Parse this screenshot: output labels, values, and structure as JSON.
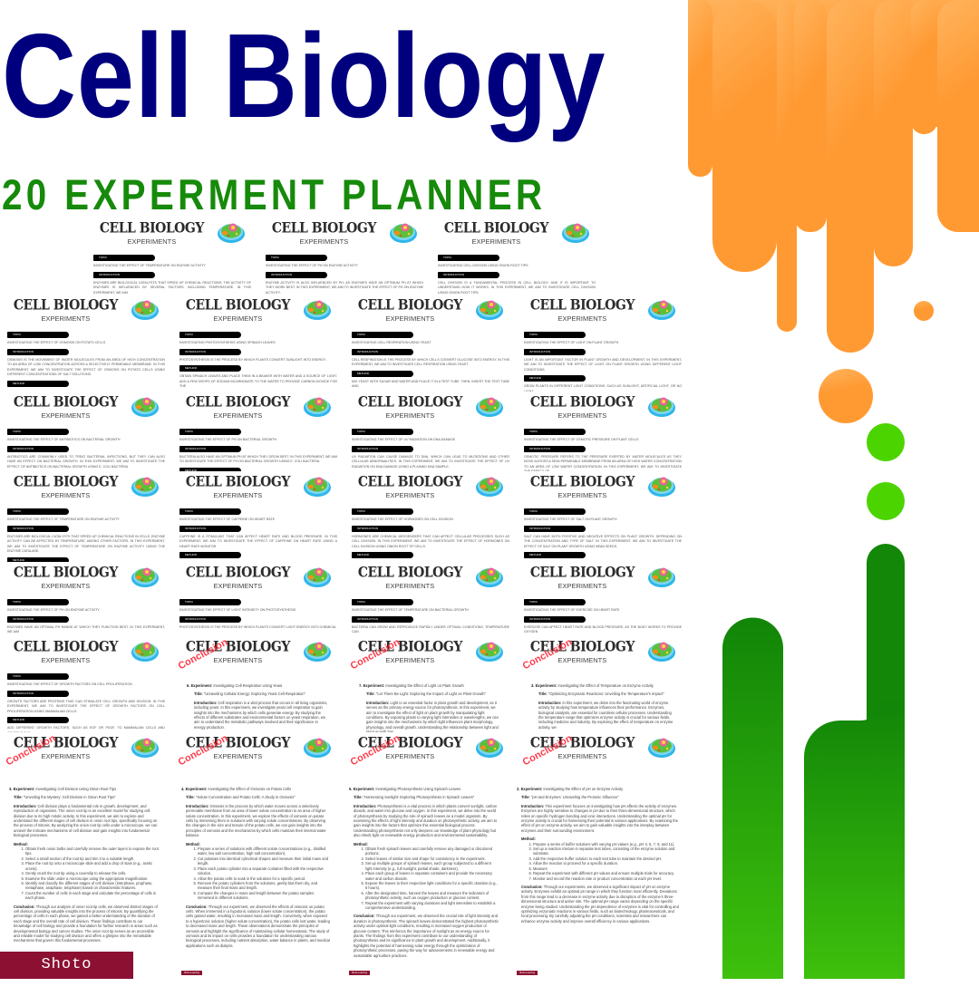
{
  "header": {
    "title": "Cell Biology",
    "subtitle": "20 EXPERMENT PLANNER"
  },
  "brand": "Shoto Learning",
  "colors": {
    "title": "#00007f",
    "subtitle": "#168a0a",
    "orange": "#ff9a33",
    "green_light": "#4cd400",
    "green_dark": "#148a08",
    "brand": "#8b1032",
    "stamp": "#ff3b4a"
  },
  "sheet_header": {
    "title": "CELL BIOLOGY",
    "subtitle": "EXPERIMENTS",
    "icon": "animal-cell-icon",
    "stamp": "Conclusion"
  },
  "labels": {
    "topic": "TOPIC",
    "introduction": "INTRODUCTION",
    "method": "METHOD"
  },
  "page_labels": {
    "experiment": "Experiment:",
    "title": "Title:",
    "introduction": "Introduction:",
    "method": "Method:",
    "conclusion": "Conclusion:"
  },
  "sheets": [
    {
      "topic": "INVESTIGATING THE EFFECT OF TEMPERATURE ON ENZYME ACTIVITY",
      "introduction": "ENZYMES ARE BIOLOGICAL CATALYSTS THAT SPEED UP CHEMICAL REACTIONS. THE ACTIVITY OF ENZYMES IS INFLUENCED BY SEVERAL FACTORS, INCLUDING TEMPERATURE. IN THIS EXPERIMENT, WE AIM"
    },
    {
      "topic": "INVESTIGATING THE EFFECT OF PH ON ENZYME ACTIVITY",
      "introduction": "ENZYME ACTIVITY IS ALSO INFLUENCED BY PH, AS ENZYMES HAVE AN OPTIMUM PH AT WHICH THEY WORK BEST. IN THIS EXPERIMENT, WE AIM TO INVESTIGATE THE EFFECT OF PH ON ENZYME ACTIVITY."
    },
    {
      "topic": "INVESTIGATING CELL DIVISION USING ONION ROOT TIPS",
      "introduction": "CELL DIVISION IS A FUNDAMENTAL PROCESS IN CELL BIOLOGY, AND IT IS IMPORTANT TO UNDERSTAND HOW IT WORKS. IN THIS EXPERIMENT, WE AIM TO INVESTIGATE CELL DIVISION USING ONION ROOT TIPS."
    },
    {
      "topic": "INVESTIGATING THE EFFECT OF OSMOSIS ON POTATO CELLS",
      "introduction": "OSMOSIS IS THE MOVEMENT OF WATER MOLECULES FROM AN AREA OF HIGH CONCENTRATION TO AN AREA OF LOW CONCENTRATION ACROSS A SELECTIVELY PERMEABLE MEMBRANE. IN THIS EXPERIMENT, WE AIM TO INVESTIGATE THE EFFECT OF OSMOSIS ON POTATO CELLS USING DIFFERENT CONCENTRATIONS OF SALT SOLUTIONS.",
      "method": ""
    },
    {
      "topic": "INVESTIGATING PHOTOSYNTHESIS USING SPINACH LEAVES",
      "introduction": "PHOTOSYNTHESIS IS THE PROCESS BY WHICH PLANTS CONVERT SUNLIGHT INTO ENERGY.",
      "method": "OBTAIN SPINACH LEAVES AND PLACE THEM IN A BEAKER WITH WATER AND A SOURCE OF LIGHT. ADD A FEW DROPS OF SODIUM BICARBONATE TO THE WATER TO PROVIDE CARBON DIOXIDE FOR THE"
    },
    {
      "topic": "INVESTIGATING CELL RESPIRATION USING YEAST",
      "introduction": "CELL RESPIRATION IS THE PROCESS BY WHICH CELLS CONVERT GLUCOSE INTO ENERGY. IN THIS EXPERIMENT, WE AIM TO INVESTIGATE CELL RESPIRATION USING YEAST.",
      "method": "MIX YEAST WITH SUGAR AND WATER AND PLACE IT IN A TEST TUBE. THEN, INSERT THE TEST TUBE AND"
    },
    {
      "topic": "INVESTIGATING THE EFFECT OF LIGHT ON PLANT GROWTH",
      "introduction": "LIGHT IS AN IMPORTANT FACTOR IN PLANT GROWTH AND DEVELOPMENT. IN THIS EXPERIMENT, WE AIM TO INVESTIGATE THE EFFECT OF LIGHT ON PLANT GROWTH USING DIFFERENT LIGHT CONDITIONS.",
      "method": "GROW PLANTS IN DIFFERENT LIGHT CONDITIONS, SUCH AS SUNLIGHT, ARTIFICIAL LIGHT, OR NO LIGHT."
    },
    {
      "topic": "INVESTIGATING THE EFFECT OF ANTIBIOTICS ON BACTERIAL GROWTH",
      "introduction": "ANTIBIOTICS ARE COMMONLY USED TO TREAT BACTERIAL INFECTIONS, BUT THEY CAN ALSO HAVE AN EFFECT ON BACTERIAL GROWTH. IN THIS EXPERIMENT, WE AIM TO INVESTIGATE THE EFFECT OF ANTIBIOTICS ON BACTERIAL GROWTH USING E. COLI BACTERIA."
    },
    {
      "topic": "INVESTIGATING THE EFFECT OF PH ON BACTERIAL GROWTH",
      "introduction": "BACTERIA ALSO HAVE AN OPTIMUM PH AT WHICH THEY GROW BEST. IN THIS EXPERIMENT, WE AIM TO INVESTIGATE THE EFFECT OF PH ON BACTERIAL GROWTH USING E. COLI BACTERIA.",
      "method": ""
    },
    {
      "topic": "INVESTIGATING THE EFFECT OF UV RADIATION ON DNA DAMAGE",
      "introduction": "UV RADIATION CAN CAUSE DAMAGE TO DNA, WHICH CAN LEAD TO MUTATIONS AND OTHER CELLULAR ABNORMALITIES. IN THIS EXPERIMENT, WE AIM TO INVESTIGATE THE EFFECT OF UV RADIATION ON DNA DAMAGE USING A PLASMID DNA SAMPLE."
    },
    {
      "topic": "INVESTIGATING THE EFFECT OF OSMOTIC PRESSURE ON PLANT CELLS",
      "introduction": "OSMOTIC PRESSURE REFERS TO THE PRESSURE EXERTED BY WATER MOLECULES AS THEY MOVE ACROSS A SEMI-PERMEABLE MEMBRANE FROM AN AREA OF HIGH WATER CONCENTRATION TO AN AREA OF LOW WATER CONCENTRATION. IN THIS EXPERIMENT, WE AIM TO INVESTIGATE THE EFFECT OF"
    },
    {
      "topic": "INVESTIGATING THE EFFECT OF TEMPERATURE ON ENZYME ACTIVITY",
      "introduction": "ENZYMES ARE BIOLOGICAL CATALYSTS THAT SPEED UP CHEMICAL REACTIONS IN CELLS. ENZYME ACTIVITY CAN BE AFFECTED BY TEMPERATURE, AMONG OTHER FACTORS. IN THIS EXPERIMENT, WE AIM TO INVESTIGATE THE EFFECT OF TEMPERATURE ON ENZYME ACTIVITY USING THE ENZYME CATALASE.",
      "method": ""
    },
    {
      "topic": "INVESTIGATING THE EFFECT OF CAFFEINE ON HEART RATE",
      "introduction": "CAFFEINE IS A STIMULANT THAT CAN AFFECT HEART RATE AND BLOOD PRESSURE. IN THIS EXPERIMENT, WE AIM TO INVESTIGATE THE EFFECT OF CAFFEINE ON HEART RATE USING A HEART RATE MONITOR.",
      "method": ""
    },
    {
      "topic": "INVESTIGATING THE EFFECT OF HORMONES ON CELL DIVISION",
      "introduction": "HORMONES ARE CHEMICAL MESSENGERS THAT CAN AFFECT CELLULAR PROCESSES SUCH AS CELL DIVISION. IN THIS EXPERIMENT, WE AIM TO INVESTIGATE THE EFFECT OF HORMONES ON CELL DIVISION USING ONION ROOT TIP CELLS.",
      "method": ""
    },
    {
      "topic": "INVESTIGATING THE EFFECT OF SALT ON PLANT GROWTH",
      "introduction": "SALT CAN HAVE BOTH POSITIVE AND NEGATIVE EFFECTS ON PLANT GROWTH, DEPENDING ON THE CONCENTRATION AND TYPE OF SALT. IN THIS EXPERIMENT, WE AIM TO INVESTIGATE THE EFFECT OF SALT ON PLANT GROWTH USING BEAN SEEDS.",
      "method": ""
    },
    {
      "topic": "INVESTIGATING THE EFFECT OF PH ON ENZYME ACTIVITY",
      "introduction": "ENZYMES HAVE AN OPTIMAL PH RANGE AT WHICH THEY FUNCTION BEST. IN THIS EXPERIMENT, WE AIM"
    },
    {
      "topic": "INVESTIGATING THE EFFECT OF LIGHT INTENSITY ON PHOTOSYNTHESIS",
      "introduction": "PHOTOSYNTHESIS IS THE PROCESS BY WHICH PLANTS CONVERT LIGHT ENERGY INTO CHEMICAL"
    },
    {
      "topic": "INVESTIGATING THE EFFECT OF TEMPERATURE ON BACTERIAL GROWTH",
      "introduction": "BACTERIA CAN GROW AND REPRODUCE RAPIDLY UNDER OPTIMAL CONDITIONS. TEMPERATURE CAN"
    },
    {
      "topic": "INVESTIGATING THE EFFECT OF EXERCISE ON HEART RATE",
      "introduction": "EXERCISE CAN AFFECT HEART RATE AND BLOOD PRESSURE, AS THE BODY WORKS TO PROVIDE OXYGEN"
    },
    {
      "topic": "INVESTIGATING THE EFFECT OF GROWTH FACTORS ON CELL PROLIFERATION",
      "introduction": "GROWTH FACTORS ARE PROTEINS THAT CAN STIMULATE CELL GROWTH AND DIVISION. IN THIS EXPERIMENT, WE AIM TO INVESTIGATE THE EFFECT OF GROWTH FACTORS ON CELL PROLIFERATION USING MAMMALIAN CELLS.",
      "method": "ADD DIFFERENT GROWTH FACTORS, SUCH AS EGF OR PDGF, TO MAMMALIAN CELLS AND OBSERVE THE"
    },
    {
      "conclusion": true,
      "number": "6.",
      "experiment": "Investigating Cell Respiration Using Yeast",
      "title": "\"Unraveling Cellular Energy: Exploring Yeast Cell Respiration\"",
      "introduction": "Cell respiration is a vital process that occurs in all living organisms, including yeast. In this experiment, we investigate yeast cell respiration to gain insights into the mechanisms by which cells generate energy. By studying the effects of different substrates and environmental factors on yeast respiration, we aim to understand the metabolic pathways involved and their significance in energy production."
    },
    {
      "conclusion": true,
      "number": "7.",
      "experiment": "Investigating the Effect of Light on Plant Growth",
      "title": "\"Let There Be Light: Exploring the Impact of Light on Plant Growth\"",
      "introduction": "Light is an essential factor in plant growth and development, as it serves as the primary energy source for photosynthesis. In this experiment, we aim to investigate the effect of light on plant growth by manipulating light conditions. By exposing plants to varying light intensities or wavelengths, we can gain insights into the mechanisms by which light influences plant morphology, physiology, and overall growth. Understanding the relationship between light and plant growth has"
    },
    {
      "conclusion": true,
      "number": "3.",
      "experiment": "Investigating the Effect of Temperature on Enzyme Activity",
      "title": "\"Optimizing Enzymatic Reactions: Unveiling the Temperature's Impact\"",
      "introduction": "In this experiment, we delve into the fascinating world of enzyme activity by studying how temperature influences their performance. Enzymes, biological catalysts, are essential for countless cellular processes. Understanding the temperature range that optimizes enzyme activity is crucial for various fields, including medicine and industry. By exploring the effect of temperature on enzyme activity, we"
    },
    {
      "conclusion": true
    },
    {
      "conclusion": true
    },
    {
      "conclusion": true
    },
    {
      "conclusion": true
    }
  ],
  "pages": [
    {
      "number": "3.",
      "experiment": "Investigating Cell Division Using Onion Root Tips",
      "title": "\"Unveiling the Mystery: Cell Division in Onion Root Tips\"",
      "introduction": "Cell division plays a fundamental role in growth, development, and reproduction of organisms. The onion root tip is an excellent model for studying cell division due to its high mitotic activity. In this experiment, we aim to explore and understand the different stages of cell division in onion root tips, specifically focusing on the process of mitosis. By analyzing the onion root tip cells under a microscope, we can unravel the intricate mechanisms of cell division and gain insights into fundamental biological processes.",
      "method": [
        "Obtain fresh onion bulbs and carefully remove the outer layers to expose the root tips.",
        "Select a small section of the root tip and trim it to a suitable length.",
        "Place the root tip onto a microscope slide and add a drop of stain (e.g., acetic orcein).",
        "Gently crush the root tip using a coverslip to release the cells.",
        "Examine the slide under a microscope using the appropriate magnification.",
        "Identify and classify the different stages of cell division (interphase, prophase, metaphase, anaphase, telophase) based on characteristic features.",
        "Count the number of cells in each stage and calculate the percentage of cells in each phase."
      ],
      "conclusion": "Through our analysis of onion root tip cells, we observed distinct stages of cell division, providing valuable insights into the process of mitosis. By quantifying the percentage of cells in each phase, we gained a better understanding of the duration of each stage and the overall rate of cell division. These findings contribute to our knowledge of cell biology and provide a foundation for further research in areas such as developmental biology and cancer studies. The onion root tip serves as an accessible and reliable model for studying cell division and offers a glimpse into the remarkable mechanisms that govern this fundamental processes."
    },
    {
      "number": "4.",
      "experiment": "Investigating the Effect of Osmosis on Potato Cells",
      "title": "\"Solute Concentration and Potato Cells: A Study in Osmosis\"",
      "introduction": "Osmosis is the process by which water moves across a selectively permeable membrane from an area of lower solute concentration to an area of higher solute concentration. In this experiment, we explore the effects of osmosis on potato cells by immersing them in solutions with varying solute concentrations. By observing the changes in the size and texture of the potato cells, we can gain insights into the principles of osmosis and the mechanisms by which cells maintain their internal water balance.",
      "method": [
        "Prepare a series of solutions with different solute concentrations (e.g., distilled water, low salt concentration, high salt concentration).",
        "Cut potatoes into identical cylindrical shapes and measure their initial mass and length.",
        "Place each potato cylinder into a separate container filled with the respective solution.",
        "Allow the potato cells to soak in the solutions for a specific period.",
        "Remove the potato cylinders from the solutions, gently blot them dry, and measure their final mass and length.",
        "Compare the changes in mass and length between the potato samples immersed in different solutions."
      ],
      "conclusion": "Through our experiment, we observed the effects of osmosis on potato cells. When immersed in a hypotonic solution (lower solute concentration), the potato cells gained water, resulting in increased mass and length. Conversely, when exposed to a hypertonic solution (higher solute concentration), the potato cells lost water, leading to decreased mass and length. These observations demonstrate the principles of osmosis and highlight the significance of maintaining cellular homeostasis. The study of osmosis and its impact on cells provides a foundation for understanding various biological processes, including nutrient absorption, water balance in plants, and medical applications such as dialysis."
    },
    {
      "number": "5.",
      "experiment": "Investigating Photosynthesis Using Spinach Leaves",
      "title": "\"Harnessing Sunlight: Exploring Photosynthesis in Spinach Leaves\"",
      "introduction": "Photosynthesis is a vital process in which plants convert sunlight, carbon dioxide, and water into glucose and oxygen. In this experiment, we delve into the world of photosynthesis by studying the role of spinach leaves as a model organism. By examining the effects of light intensity and duration on photosynthetic activity, we aim to gain insights into the factors that optimize this essential biological process. Understanding photosynthesis not only deepens our knowledge of plant physiology but also sheds light on renewable energy production and environmental sustainability.",
      "method": [
        "Obtain fresh spinach leaves and carefully remove any damaged or discolored portions.",
        "Select leaves of similar size and shape for consistency in the experiment.",
        "Set up multiple groups of spinach leaves, each group subjected to a different light intensity (e.g., full sunlight, partial shade, darkness).",
        "Place each group of leaves in separate containers and provide the necessary water and carbon dioxide.",
        "Expose the leaves to their respective light conditions for a specific duration (e.g., 6 hours).",
        "After the designated time, harvest the leaves and measure the indicators of photosynthetic activity, such as oxygen production or glucose content.",
        "Repeat the experiment with varying durations and light intensities to establish a comprehensive understanding."
      ],
      "conclusion": "Through our experiment, we observed the crucial role of light intensity and duration in photosynthesis. The spinach leaves demonstrated the highest photosynthetic activity under optimal light conditions, resulting in increased oxygen production or glucose content. This reinforces the importance of sunlight as an energy source for plants. The findings from this experiment contribute to our understanding of photosynthesis and its significance in plant growth and development. Additionally, it highlights the potential of harnessing solar energy through the optimization of photosynthetic processes, paving the way for advancements in renewable energy and sustainable agriculture practices."
    },
    {
      "number": "2.",
      "experiment": "Investigating the Effect of pH on Enzyme Activity",
      "title": "\"pH and Enzymes: Unraveling the Protonic Influence\"",
      "introduction": "This experiment focuses on investigating how pH affects the activity of enzymes. Enzymes are highly sensitive to changes in pH due to their three-dimensional structure, which relies on specific hydrogen bonding and ionic interactions. Understanding the optimal pH for enzyme activity is crucial for harnessing their potential in various applications. By examining the effect of pH on enzyme activity, we aim to gain valuable insights into the interplay between enzymes and their surrounding environment.",
      "method": [
        "Prepare a series of buffer solutions with varying pH values (e.g., pH 3, 5, 7, 9, and 11).",
        "Set up a reaction mixture in separate test tubes, consisting of the enzyme solution and substrate.",
        "Add the respective buffer solution to each test tube to maintain the desired pH.",
        "Allow the reaction to proceed for a specific duration.",
        "Measure",
        "Repeat the experiment with different pH values and ensure multiple trials for accuracy.",
        "Monitor and record the reaction rate or product concentration at each pH level."
      ],
      "conclusion": "Through our experiments, we observed a significant impact of pH on enzyme activity. Enzymes exhibit an optimal pH range in which they function most efficiently. Deviations from this range lead to a decrease in enzyme activity due to disruption of the enzyme's three-dimensional structure and active site. The optimal pH range varies depending on the specific enzyme being studied. Understanding the pH dependence of enzymes is vital for controlling and optimizing enzymatic reactions in various fields, such as biotechnology, pharmaceuticals, and food processing. By carefully adjusting the pH conditions, scientists and researchers can enhance enzyme activity and improve overall efficiency in various applications."
    }
  ]
}
